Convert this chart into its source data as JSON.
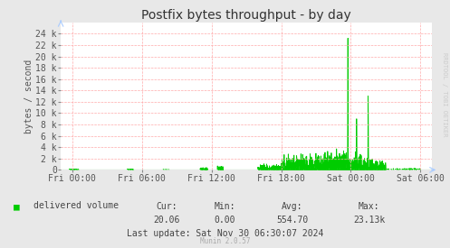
{
  "title": "Postfix bytes throughput - by day",
  "ylabel": "bytes / second",
  "bg_color": "#e8e8e8",
  "plot_bg_color": "#ffffff",
  "grid_color": "#ffaaaa",
  "line_color": "#00cc00",
  "fill_color": "#00cc00",
  "x_ticks_labels": [
    "Fri 00:00",
    "Fri 06:00",
    "Fri 12:00",
    "Fri 18:00",
    "Sat 00:00",
    "Sat 06:00"
  ],
  "x_ticks_positions": [
    0,
    21600,
    43200,
    64800,
    86400,
    108000
  ],
  "x_min": -3600,
  "x_max": 111600,
  "y_min": 0,
  "y_max": 26000,
  "y_ticks": [
    0,
    2000,
    4000,
    6000,
    8000,
    10000,
    12000,
    14000,
    16000,
    18000,
    20000,
    22000,
    24000
  ],
  "y_tick_labels": [
    "0",
    "2 k",
    "4 k",
    "6 k",
    "8 k",
    "10 k",
    "12 k",
    "14 k",
    "16 k",
    "18 k",
    "20 k",
    "22 k",
    "24 k"
  ],
  "legend_label": "delivered volume",
  "legend_color": "#00cc00",
  "cur_label": "Cur:",
  "cur_val": "20.06",
  "min_label": "Min:",
  "min_val": "0.00",
  "avg_label": "Avg:",
  "avg_val": "554.70",
  "max_label": "Max:",
  "max_val": "23.13k",
  "last_update": "Last update: Sat Nov 30 06:30:07 2024",
  "munin_label": "Munin 2.0.57",
  "rrdtool_label": "RRDTOOL / TOBI OETIKER",
  "title_fontsize": 10,
  "axis_fontsize": 7,
  "tick_fontsize": 7,
  "stats_fontsize": 7,
  "munin_fontsize": 5.5,
  "rrdtool_fontsize": 5
}
